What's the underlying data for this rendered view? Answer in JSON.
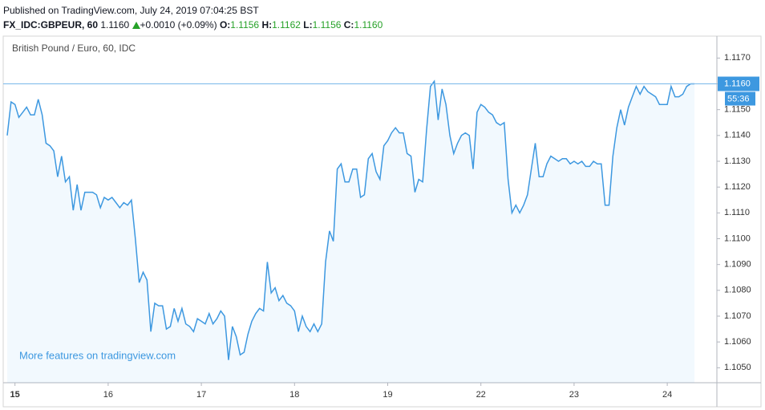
{
  "header": {
    "published": "Published on TradingView.com, July 24, 2019 07:04:25 BST",
    "symbol": "FX_IDC:GBPEUR, 60",
    "price": "1.1160",
    "change": "+0.0010 (+0.09%)",
    "ohlc": [
      {
        "label": "O:",
        "value": "1.1156"
      },
      {
        "label": "H:",
        "value": "1.1162"
      },
      {
        "label": "L:",
        "value": "1.1156"
      },
      {
        "label": "C:",
        "value": "1.1160"
      }
    ]
  },
  "chart_data": {
    "type": "line",
    "title": "British Pound / Euro, 60, IDC",
    "annotation": "More features on tradingview.com",
    "color": "#3d98e0",
    "categories": [
      null,
      null,
      "15",
      null,
      null,
      null,
      null,
      null,
      null,
      null,
      null,
      null,
      null,
      null,
      null,
      null,
      null,
      null,
      null,
      null,
      null,
      null,
      null,
      null,
      null,
      null,
      "16",
      null,
      null,
      null,
      null,
      null,
      null,
      null,
      null,
      null,
      null,
      null,
      null,
      null,
      null,
      null,
      null,
      null,
      null,
      null,
      null,
      null,
      null,
      null,
      "17",
      null,
      null,
      null,
      null,
      null,
      null,
      null,
      null,
      null,
      null,
      null,
      null,
      null,
      null,
      null,
      null,
      null,
      null,
      null,
      null,
      null,
      null,
      null,
      "18",
      null,
      null,
      null,
      null,
      null,
      null,
      null,
      null,
      null,
      null,
      null,
      null,
      null,
      null,
      null,
      null,
      null,
      null,
      null,
      null,
      null,
      null,
      null,
      "19",
      null,
      null,
      null,
      null,
      null,
      null,
      null,
      null,
      null,
      null,
      null,
      null,
      null,
      null,
      null,
      null,
      null,
      null,
      null,
      null,
      null,
      null,
      null,
      "22",
      null,
      null,
      null,
      null,
      null,
      null,
      null,
      null,
      null,
      null,
      null,
      null,
      null,
      null,
      null,
      null,
      null,
      null,
      null,
      null,
      null,
      null,
      null,
      "23",
      null,
      null,
      null,
      null,
      null,
      null,
      null,
      null,
      null,
      null,
      null,
      null,
      null,
      null,
      null,
      null,
      null,
      null,
      null,
      null,
      null,
      null,
      null,
      "24",
      null,
      null,
      null,
      null,
      null,
      null,
      null
    ],
    "values": [
      1.114,
      1.1153,
      1.1152,
      1.1147,
      1.1149,
      1.1151,
      1.1148,
      1.1148,
      1.1154,
      1.1148,
      1.1137,
      1.1136,
      1.1134,
      1.1124,
      1.1132,
      1.1122,
      1.1124,
      1.1111,
      1.1121,
      1.1111,
      1.1118,
      1.1118,
      1.1118,
      1.1117,
      1.1112,
      1.1116,
      1.1115,
      1.1116,
      1.1114,
      1.1112,
      1.1114,
      1.1113,
      1.1115,
      1.11,
      1.1083,
      1.1087,
      1.1084,
      1.1064,
      1.1075,
      1.1074,
      1.1074,
      1.1065,
      1.1066,
      1.1073,
      1.1068,
      1.1073,
      1.1067,
      1.1066,
      1.1064,
      1.1069,
      1.1068,
      1.1067,
      1.1071,
      1.1067,
      1.1069,
      1.1072,
      1.107,
      1.1053,
      1.1066,
      1.1062,
      1.1055,
      1.1056,
      1.1063,
      1.1068,
      1.1071,
      1.1073,
      1.1072,
      1.1091,
      1.1079,
      1.1081,
      1.1076,
      1.1078,
      1.1075,
      1.1074,
      1.1072,
      1.1064,
      1.107,
      1.1066,
      1.1064,
      1.1067,
      1.1064,
      1.1067,
      1.1091,
      1.1103,
      1.1099,
      1.1127,
      1.1129,
      1.1122,
      1.1122,
      1.1127,
      1.1127,
      1.1116,
      1.1117,
      1.1131,
      1.1133,
      1.1126,
      1.1123,
      1.1136,
      1.1138,
      1.1141,
      1.1143,
      1.1141,
      1.1141,
      1.1133,
      1.1132,
      1.1118,
      1.1123,
      1.1122,
      1.1142,
      1.1159,
      1.1161,
      1.1146,
      1.1158,
      1.1152,
      1.114,
      1.1133,
      1.1137,
      1.114,
      1.1141,
      1.114,
      1.1127,
      1.1149,
      1.1152,
      1.1151,
      1.1149,
      1.1148,
      1.1145,
      1.1144,
      1.1145,
      1.1123,
      1.111,
      1.1113,
      1.111,
      1.1113,
      1.1117,
      1.1127,
      1.1137,
      1.1124,
      1.1124,
      1.1129,
      1.1132,
      1.1131,
      1.113,
      1.1131,
      1.1131,
      1.1129,
      1.113,
      1.1129,
      1.113,
      1.1128,
      1.1128,
      1.113,
      1.1129,
      1.1129,
      1.1113,
      1.1113,
      1.1132,
      1.1143,
      1.115,
      1.1144,
      1.1151,
      1.1155,
      1.1159,
      1.1156,
      1.1159,
      1.1157,
      1.1156,
      1.1155,
      1.1152,
      1.1152,
      1.1152,
      1.1159,
      1.1155,
      1.1155,
      1.1156,
      1.1159,
      1.116,
      1.116
    ],
    "ylim": [
      1.10442,
      1.11785
    ],
    "yticks": [
      {
        "value": 1.105,
        "label": "1.1050"
      },
      {
        "value": 1.106,
        "label": "1.1060"
      },
      {
        "value": 1.107,
        "label": "1.1070"
      },
      {
        "value": 1.108,
        "label": "1.1080"
      },
      {
        "value": 1.109,
        "label": "1.1090"
      },
      {
        "value": 1.11,
        "label": "1.1100"
      },
      {
        "value": 1.111,
        "label": "1.1110"
      },
      {
        "value": 1.112,
        "label": "1.1120"
      },
      {
        "value": 1.113,
        "label": "1.1130"
      },
      {
        "value": 1.114,
        "label": "1.1140"
      },
      {
        "value": 1.115,
        "label": "1.1150"
      },
      {
        "value": 1.116,
        "label": "1.1160"
      },
      {
        "value": 1.117,
        "label": "1.1170"
      }
    ],
    "last": {
      "value": 1.116,
      "label": "1.1160"
    },
    "countdown": "55:36",
    "grid": false
  }
}
